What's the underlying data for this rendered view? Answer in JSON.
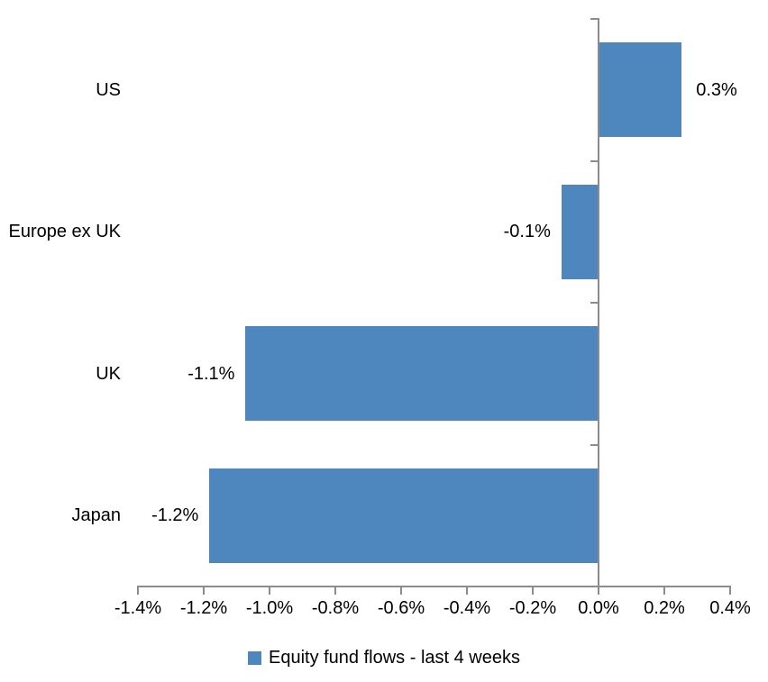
{
  "chart_data": {
    "type": "bar",
    "orientation": "horizontal",
    "title": "",
    "categories": [
      "US",
      "Europe ex UK",
      "UK",
      "Japan"
    ],
    "series": [
      {
        "name": "Equity fund flows - last 4 weeks",
        "values": [
          0.3,
          -0.1,
          -1.1,
          -1.2
        ],
        "value_labels": [
          "0.3%",
          "-0.1%",
          "-1.1%",
          "-1.2%"
        ],
        "plot_values": [
          0.25,
          -0.11,
          -1.07,
          -1.18
        ]
      }
    ],
    "xlim": [
      -1.4,
      0.4
    ],
    "x_tick_values": [
      -1.4,
      -1.2,
      -1.0,
      -0.8,
      -0.6,
      -0.4,
      -0.2,
      0.0,
      0.2,
      0.4
    ],
    "x_tick_labels": [
      "-1.4%",
      "-1.2%",
      "-1.0%",
      "-0.8%",
      "-0.6%",
      "-0.4%",
      "-0.2%",
      "0.0%",
      "0.2%",
      "0.4%"
    ],
    "grid": false,
    "data_labels": "outside-end",
    "bar_color": "#4E86BE",
    "axis_color": "#8C8C8C",
    "text_color": "#000000",
    "legend": {
      "position": "bottom",
      "label": "Equity fund flows - last 4 weeks",
      "swatch_color": "#4E86BE"
    }
  }
}
